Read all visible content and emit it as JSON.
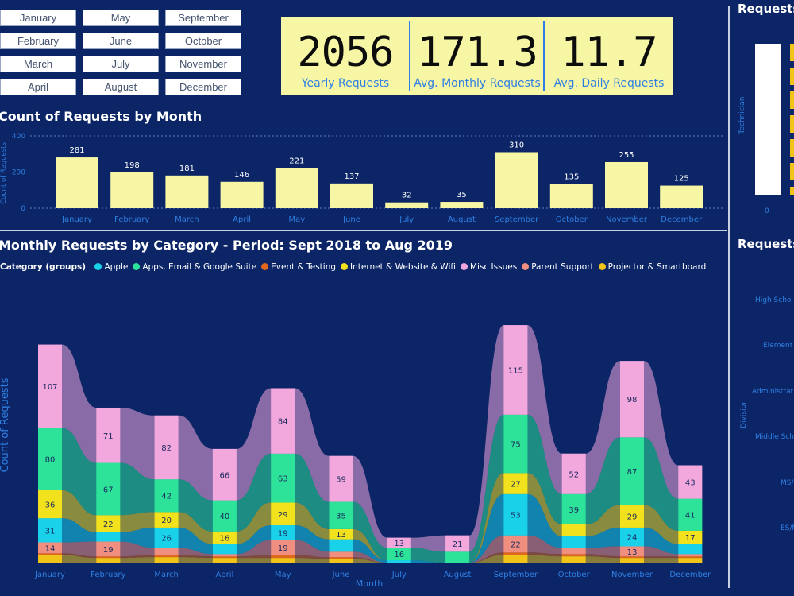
{
  "months": [
    "January",
    "February",
    "March",
    "April",
    "May",
    "June",
    "July",
    "August",
    "September",
    "October",
    "November",
    "December"
  ],
  "slicers": [
    "January",
    "May",
    "September",
    "February",
    "June",
    "October",
    "March",
    "July",
    "November",
    "April",
    "August",
    "December"
  ],
  "kpi": [
    {
      "value": "2056",
      "label": "Yearly Requests"
    },
    {
      "value": "171.3",
      "label": "Avg. Monthly Requests"
    },
    {
      "value": "11.7",
      "label": "Avg. Daily Requests"
    }
  ],
  "colors": {
    "bg": "#0b2566",
    "bar": "#f6f6a5",
    "accent": "#2f7fe2",
    "white": "#ffffff",
    "gold": "#f0c419"
  },
  "bar_chart": {
    "title": "Count of Requests by Month",
    "ylabel": "Count of Requests",
    "yticks": [
      "400",
      "200",
      "0"
    ]
  },
  "stream_chart": {
    "title": "Monthly Requests by Category - Period: Sept 2018 to Aug 2019",
    "ylabel": "Count of Requests",
    "xlabel": "Month",
    "legend_title": "Category (groups)"
  },
  "right_panel": {
    "title1": "Requests",
    "title2": "Requests",
    "axis1": "Technician",
    "tick0": "0",
    "axis2": "Division",
    "divisions": [
      "High Scho",
      "Element",
      "Administrat",
      "Middle Sch",
      "MS/",
      "ES/MS/"
    ]
  },
  "chart_data": [
    {
      "type": "bar",
      "title": "Count of Requests by Month",
      "categories": [
        "January",
        "February",
        "March",
        "April",
        "May",
        "June",
        "July",
        "August",
        "September",
        "October",
        "November",
        "December"
      ],
      "values": [
        281,
        198,
        181,
        146,
        221,
        137,
        32,
        35,
        310,
        135,
        255,
        125
      ],
      "ylabel": "Count of Requests",
      "ylim": [
        0,
        400
      ],
      "grid": true
    },
    {
      "type": "area",
      "title": "Monthly Requests by Category - Period: Sept 2018 to Aug 2019",
      "xlabel": "Month",
      "ylabel": "Count of Requests",
      "categories": [
        "January",
        "February",
        "March",
        "April",
        "May",
        "June",
        "July",
        "August",
        "September",
        "October",
        "November",
        "December"
      ],
      "legend_position": "top-left",
      "series": [
        {
          "name": "Projector & Smartboard",
          "color": "#f0c419",
          "values": [
            10,
            6,
            7,
            6,
            6,
            5,
            0,
            0,
            10,
            8,
            6,
            6
          ]
        },
        {
          "name": "Event & Testing",
          "color": "#e0671e",
          "values": [
            2,
            2,
            3,
            2,
            4,
            2,
            0,
            0,
            3,
            3,
            2,
            2
          ]
        },
        {
          "name": "Parent Support",
          "color": "#f08f80",
          "values": [
            14,
            19,
            9,
            3,
            19,
            7,
            0,
            0,
            22,
            8,
            13,
            3
          ]
        },
        {
          "name": "Apple",
          "color": "#1ad1ea",
          "values": [
            31,
            12,
            26,
            13,
            19,
            16,
            3,
            0,
            53,
            15,
            24,
            13
          ]
        },
        {
          "name": "Internet & Website & Wifi",
          "color": "#f2e11d",
          "values": [
            36,
            22,
            20,
            16,
            29,
            13,
            0,
            0,
            27,
            15,
            29,
            17
          ]
        },
        {
          "name": "Apps, Email & Google Suite",
          "color": "#2de39a",
          "values": [
            80,
            67,
            42,
            40,
            63,
            35,
            16,
            14,
            75,
            39,
            87,
            41
          ]
        },
        {
          "name": "Misc Issues",
          "color": "#f2a7dd",
          "values": [
            107,
            71,
            82,
            66,
            84,
            59,
            13,
            21,
            115,
            52,
            98,
            43
          ]
        }
      ],
      "data_labels": [
        {
          "series": "Misc Issues",
          "values": [
            107,
            71,
            82,
            66,
            84,
            59,
            13,
            21,
            115,
            52,
            98,
            43
          ]
        },
        {
          "series": "Apps, Email & Google Suite",
          "values": [
            80,
            67,
            42,
            40,
            63,
            35,
            16,
            null,
            75,
            39,
            87,
            41
          ]
        },
        {
          "series": "Internet & Website & Wifi",
          "values": [
            36,
            22,
            20,
            16,
            29,
            13,
            null,
            null,
            27,
            null,
            29,
            17
          ]
        },
        {
          "series": "Apple",
          "values": [
            31,
            null,
            26,
            null,
            19,
            null,
            null,
            null,
            53,
            null,
            24,
            null
          ]
        },
        {
          "series": "Parent Support",
          "values": [
            14,
            19,
            null,
            null,
            19,
            null,
            null,
            null,
            22,
            null,
            13,
            null
          ]
        }
      ]
    }
  ]
}
